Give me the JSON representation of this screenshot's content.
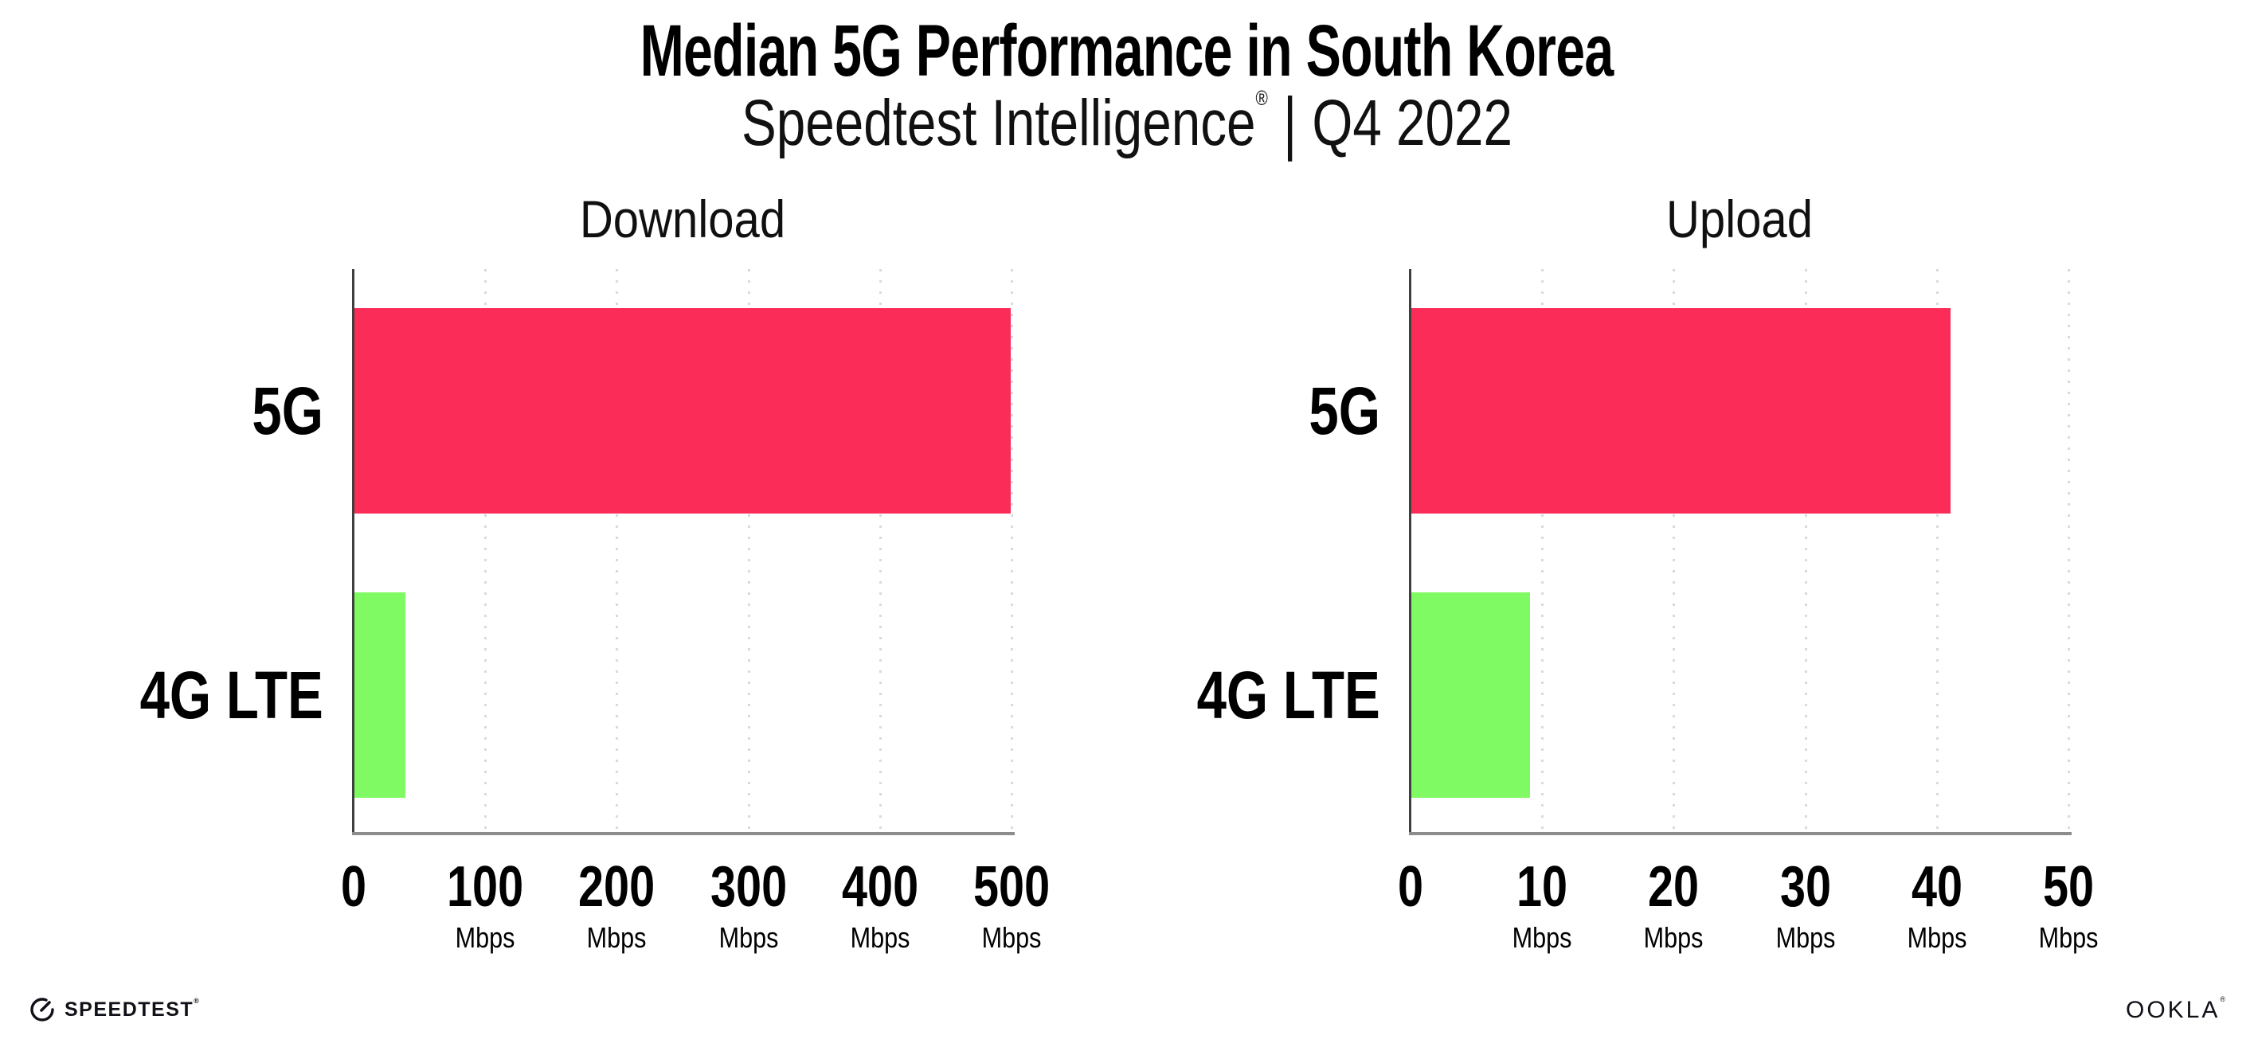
{
  "header": {
    "title": "Median 5G Performance in South Korea",
    "subtitle_brand": "Speedtest Intelligence",
    "subtitle_reg": "®",
    "subtitle_divider": "|",
    "subtitle_period": "Q4 2022"
  },
  "chart_data": [
    {
      "type": "bar",
      "orientation": "horizontal",
      "title": "Download",
      "categories": [
        "5G",
        "4G LTE"
      ],
      "values": [
        499,
        39
      ],
      "unit": "Mbps",
      "xlim": [
        0,
        500
      ],
      "xticks": [
        0,
        100,
        200,
        300,
        400,
        500
      ],
      "series_colors": [
        "#FC2C59",
        "#80FA62"
      ],
      "grid": "vertical-dotted",
      "grid_color": "#D9D9E3"
    },
    {
      "type": "bar",
      "orientation": "horizontal",
      "title": "Upload",
      "categories": [
        "5G",
        "4G LTE"
      ],
      "values": [
        41,
        9
      ],
      "unit": "Mbps",
      "xlim": [
        0,
        50
      ],
      "xticks": [
        0,
        10,
        20,
        30,
        40,
        50
      ],
      "series_colors": [
        "#FC2C59",
        "#80FA62"
      ],
      "grid": "vertical-dotted",
      "grid_color": "#D9D9E3"
    }
  ],
  "footer": {
    "speedtest_label": "SPEEDTEST",
    "speedtest_reg": "®",
    "ookla_label": "OOKLA",
    "ookla_reg": "®"
  }
}
